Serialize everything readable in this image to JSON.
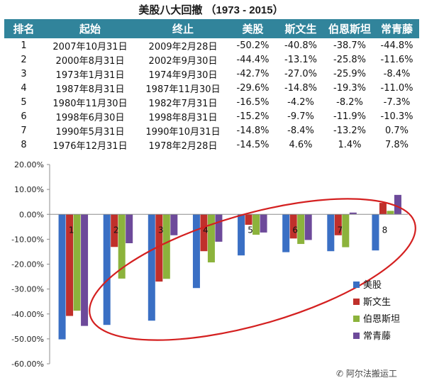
{
  "title": "美股八大回撤 （1973 - 2015）",
  "table": {
    "headers": [
      "排名",
      "起始",
      "终止",
      "美股",
      "斯文生",
      "伯恩斯坦",
      "常青藤"
    ],
    "rows": [
      [
        "1",
        "2007年10月31日",
        "2009年2月28日",
        "-50.2%",
        "-40.8%",
        "-38.7%",
        "-44.8%"
      ],
      [
        "2",
        "2000年8月31日",
        "2002年9月30日",
        "-44.4%",
        "-13.1%",
        "-25.8%",
        "-11.6%"
      ],
      [
        "3",
        "1973年1月31日",
        "1974年9月30日",
        "-42.7%",
        "-27.0%",
        "-25.9%",
        "-8.4%"
      ],
      [
        "4",
        "1987年8月31日",
        "1987年11月30日",
        "-29.6%",
        "-14.8%",
        "-19.3%",
        "-11.0%"
      ],
      [
        "5",
        "1980年11月30日",
        "1982年7月31日",
        "-16.5%",
        "-4.2%",
        "-8.2%",
        "-7.3%"
      ],
      [
        "6",
        "1998年6月30日",
        "1998年8月31日",
        "-15.2%",
        "-9.7%",
        "-11.9%",
        "-10.3%"
      ],
      [
        "7",
        "1990年5月31日",
        "1990年10月31日",
        "-14.8%",
        "-8.4%",
        "-13.2%",
        "0.7%"
      ],
      [
        "8",
        "1976年12月31日",
        "1978年2月28日",
        "-14.5%",
        "4.6%",
        "1.4%",
        "7.8%"
      ]
    ]
  },
  "chart_data": {
    "type": "bar",
    "categories": [
      "1",
      "2",
      "3",
      "4",
      "5",
      "6",
      "7",
      "8"
    ],
    "series": [
      {
        "name": "美股",
        "color": "#3a6fc4",
        "values": [
          -50.2,
          -44.4,
          -42.7,
          -29.6,
          -16.5,
          -15.2,
          -14.8,
          -14.5
        ]
      },
      {
        "name": "斯文生",
        "color": "#c0302b",
        "values": [
          -40.8,
          -13.1,
          -27.0,
          -14.8,
          -4.2,
          -9.7,
          -8.4,
          4.6
        ]
      },
      {
        "name": "伯恩斯坦",
        "color": "#8cb33c",
        "values": [
          -38.7,
          -25.8,
          -25.9,
          -19.3,
          -8.2,
          -11.9,
          -13.2,
          1.4
        ]
      },
      {
        "name": "常青藤",
        "color": "#6d4a9a",
        "values": [
          -44.8,
          -11.6,
          -8.4,
          -11.0,
          -7.3,
          -10.3,
          0.7,
          7.8
        ]
      }
    ],
    "ylim": [
      -60,
      20
    ],
    "yticks": [
      "20.00%",
      "10.00%",
      "0.00%",
      "-10.00%",
      "-20.00%",
      "-30.00%",
      "-40.00%",
      "-50.00%",
      "-60.00%"
    ],
    "grid": false,
    "legend": "bottom-right",
    "annotation": "red ellipse highlighting categories 3-8",
    "annotation_color": "#d42020"
  },
  "watermark": "阿尔法搬运工"
}
